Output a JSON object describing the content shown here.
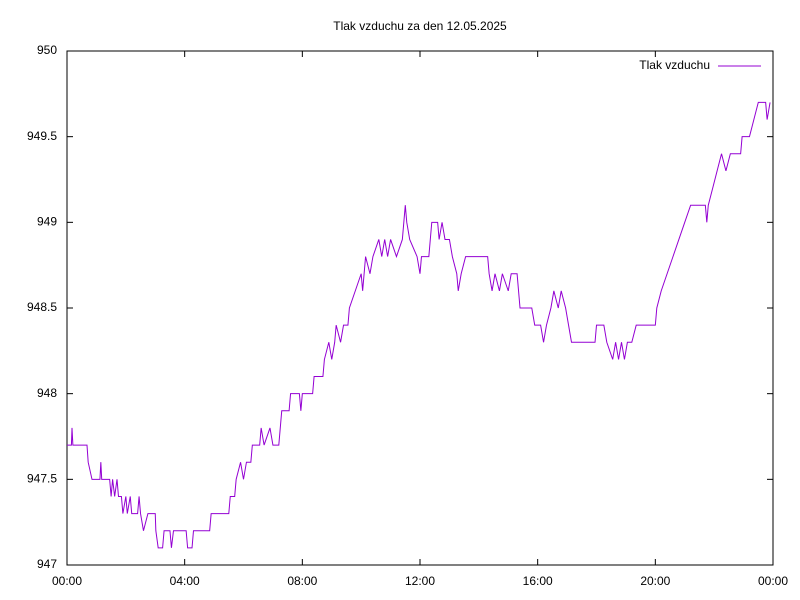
{
  "chart_data": {
    "type": "line",
    "title": "Tlak vzduchu za den 12.05.2025",
    "x": [
      0,
      0.15,
      0.17,
      0.2,
      0.68,
      0.72,
      0.85,
      1.12,
      1.15,
      1.18,
      1.45,
      1.5,
      1.55,
      1.62,
      1.7,
      1.75,
      1.85,
      1.9,
      2.0,
      2.05,
      2.15,
      2.2,
      2.4,
      2.45,
      2.5,
      2.6,
      2.75,
      3.0,
      3.02,
      3.1,
      3.25,
      3.3,
      3.5,
      3.55,
      3.62,
      4.05,
      4.1,
      4.25,
      4.3,
      4.85,
      4.9,
      5.5,
      5.55,
      5.7,
      5.75,
      5.9,
      6.0,
      6.1,
      6.25,
      6.3,
      6.55,
      6.6,
      6.7,
      6.9,
      7.0,
      7.2,
      7.3,
      7.55,
      7.6,
      7.9,
      7.95,
      8.0,
      8.35,
      8.4,
      8.7,
      8.75,
      8.9,
      9.0,
      9.1,
      9.15,
      9.3,
      9.4,
      9.55,
      9.6,
      9.8,
      10.0,
      10.05,
      10.15,
      10.3,
      10.4,
      10.6,
      10.7,
      10.8,
      10.9,
      11.0,
      11.2,
      11.4,
      11.45,
      11.5,
      11.55,
      11.65,
      11.9,
      12.0,
      12.05,
      12.3,
      12.35,
      12.4,
      12.6,
      12.65,
      12.75,
      12.85,
      13.0,
      13.1,
      13.25,
      13.3,
      13.4,
      13.55,
      14.3,
      14.35,
      14.45,
      14.55,
      14.7,
      14.8,
      15.0,
      15.1,
      15.3,
      15.4,
      15.8,
      15.9,
      16.1,
      16.2,
      16.3,
      16.45,
      16.55,
      16.7,
      16.8,
      16.95,
      17.05,
      17.15,
      17.95,
      18.0,
      18.25,
      18.35,
      18.55,
      18.65,
      18.75,
      18.85,
      18.95,
      19.05,
      19.2,
      19.35,
      20.0,
      20.05,
      20.2,
      20.4,
      20.6,
      20.8,
      21.0,
      21.2,
      21.7,
      21.75,
      21.8,
      21.95,
      22.1,
      22.25,
      22.4,
      22.55,
      22.9,
      22.95,
      23.2,
      23.35,
      23.5,
      23.75,
      23.8,
      23.9
    ],
    "series": [
      {
        "name": "Tlak vzduchu",
        "color": "#9400d3",
        "values": [
          947.7,
          947.7,
          947.8,
          947.7,
          947.7,
          947.6,
          947.5,
          947.5,
          947.6,
          947.5,
          947.5,
          947.4,
          947.5,
          947.4,
          947.5,
          947.4,
          947.4,
          947.3,
          947.4,
          947.3,
          947.4,
          947.3,
          947.3,
          947.4,
          947.3,
          947.2,
          947.3,
          947.3,
          947.2,
          947.1,
          947.1,
          947.2,
          947.2,
          947.1,
          947.2,
          947.2,
          947.1,
          947.1,
          947.2,
          947.2,
          947.3,
          947.3,
          947.4,
          947.4,
          947.5,
          947.6,
          947.5,
          947.6,
          947.6,
          947.7,
          947.7,
          947.8,
          947.7,
          947.8,
          947.7,
          947.7,
          947.9,
          947.9,
          948.0,
          948.0,
          947.9,
          948.0,
          948.0,
          948.1,
          948.1,
          948.2,
          948.3,
          948.2,
          948.3,
          948.4,
          948.3,
          948.4,
          948.4,
          948.5,
          948.6,
          948.7,
          948.6,
          948.8,
          948.7,
          948.8,
          948.9,
          948.8,
          948.9,
          948.8,
          948.9,
          948.8,
          948.9,
          949.0,
          949.1,
          949.0,
          948.9,
          948.8,
          948.7,
          948.8,
          948.8,
          948.9,
          949.0,
          949.0,
          948.9,
          949.0,
          948.9,
          948.9,
          948.8,
          948.7,
          948.6,
          948.7,
          948.8,
          948.8,
          948.7,
          948.6,
          948.7,
          948.6,
          948.7,
          948.6,
          948.7,
          948.7,
          948.5,
          948.5,
          948.4,
          948.4,
          948.3,
          948.4,
          948.5,
          948.6,
          948.5,
          948.6,
          948.5,
          948.4,
          948.3,
          948.3,
          948.4,
          948.4,
          948.3,
          948.2,
          948.3,
          948.2,
          948.3,
          948.2,
          948.3,
          948.3,
          948.4,
          948.4,
          948.5,
          948.6,
          948.7,
          948.8,
          948.9,
          949.0,
          949.1,
          949.1,
          949.0,
          949.1,
          949.2,
          949.3,
          949.4,
          949.3,
          949.4,
          949.4,
          949.5,
          949.5,
          949.6,
          949.7,
          949.7,
          949.6,
          949.7
        ]
      }
    ],
    "xlim": [
      0,
      24
    ],
    "xticks": [
      {
        "value": 0,
        "label": "00:00"
      },
      {
        "value": 4,
        "label": "04:00"
      },
      {
        "value": 8,
        "label": "08:00"
      },
      {
        "value": 12,
        "label": "12:00"
      },
      {
        "value": 16,
        "label": "16:00"
      },
      {
        "value": 20,
        "label": "20:00"
      },
      {
        "value": 24,
        "label": "00:00"
      }
    ],
    "ylim": [
      947,
      950
    ],
    "yticks": [
      947,
      947.5,
      948,
      948.5,
      949,
      949.5,
      950
    ],
    "grid": false,
    "legend": "top-right"
  }
}
